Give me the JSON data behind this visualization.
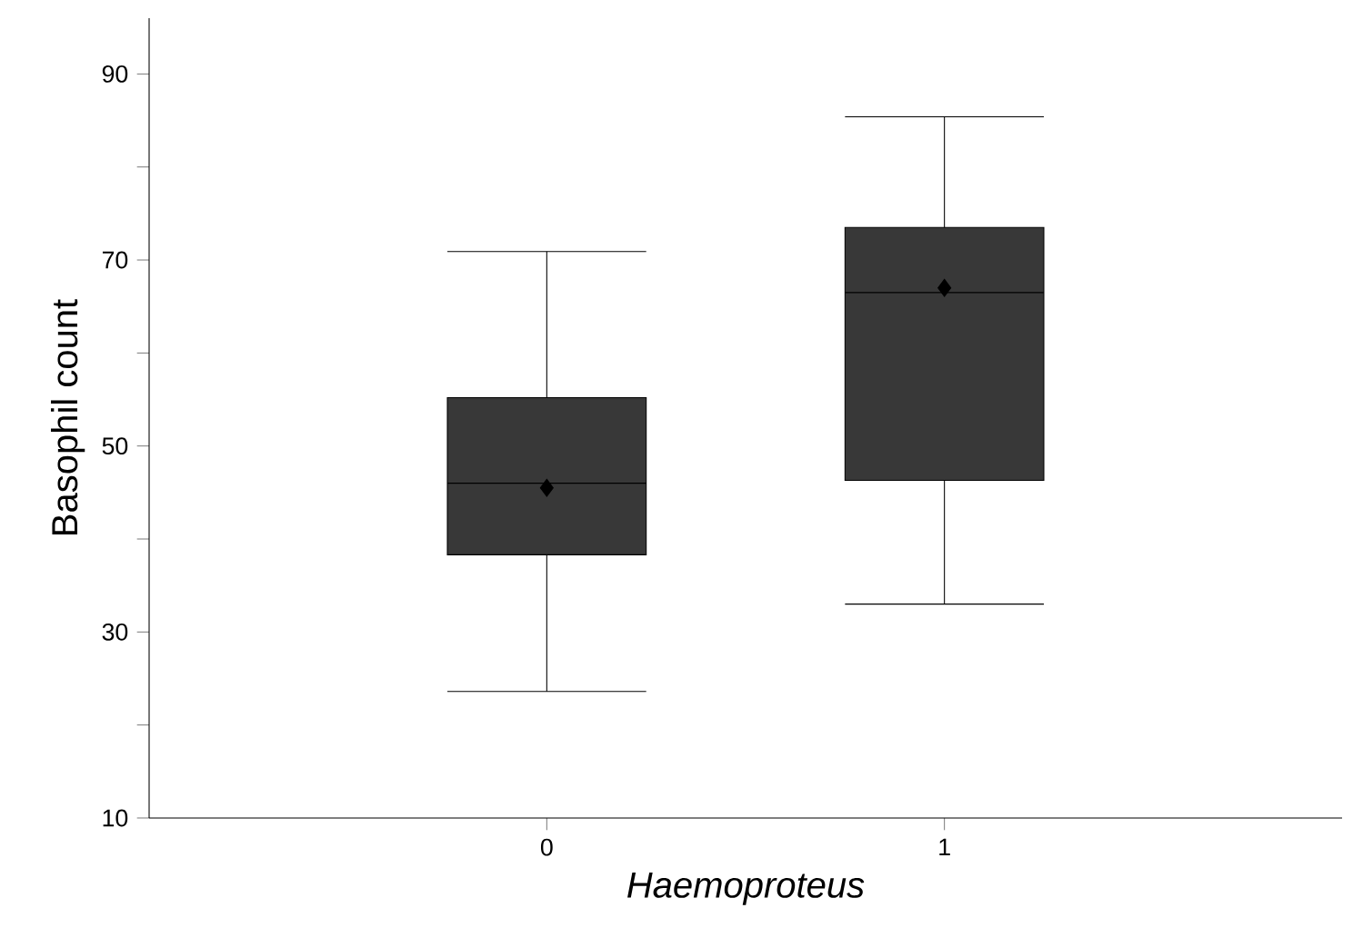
{
  "chart_data": {
    "type": "box",
    "xlabel": "Haemoproteus",
    "ylabel": "Basophil count",
    "categories": [
      "0",
      "1"
    ],
    "boxes": [
      {
        "low": 23.6,
        "q1": 38.3,
        "median": 46,
        "q3": 55.2,
        "high": 70.9,
        "mean": 45.5
      },
      {
        "low": 33,
        "q1": 46.3,
        "median": 66.5,
        "q3": 73.5,
        "high": 85.4,
        "mean": 67
      }
    ],
    "color": "#383838",
    "marker": "diamond",
    "ylim": [
      10,
      96
    ],
    "yticks": [
      10,
      {
        "value": 20,
        "label": null
      },
      30,
      {
        "value": 40,
        "label": null
      },
      50,
      {
        "value": 60,
        "label": null
      },
      70,
      {
        "value": 80,
        "label": null
      },
      90
    ],
    "grid": false
  }
}
